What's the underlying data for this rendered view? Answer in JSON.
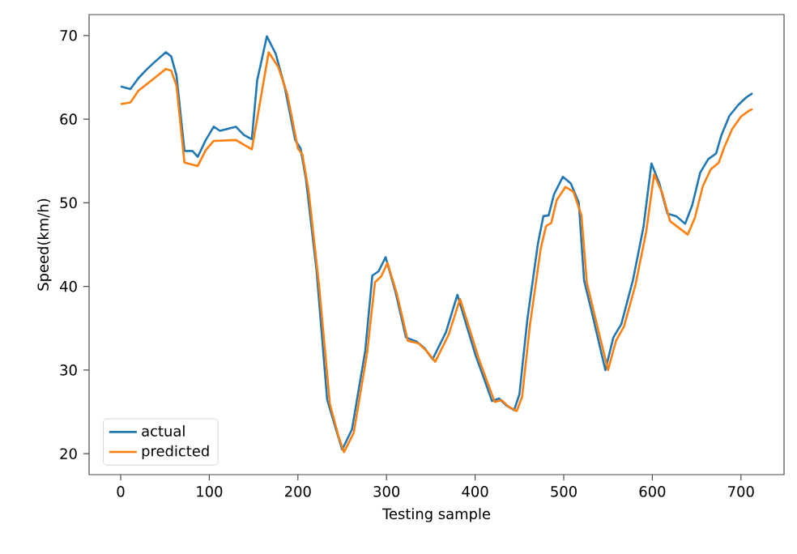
{
  "chart_data": {
    "type": "line",
    "xlabel": "Testing sample",
    "ylabel": "Speed(km/h)",
    "xlim": [
      -35.65,
      748.65
    ],
    "ylim": [
      17.5,
      72.5
    ],
    "xticks": [
      0,
      100,
      200,
      300,
      400,
      500,
      600,
      700
    ],
    "yticks": [
      20,
      30,
      40,
      50,
      60,
      70
    ],
    "grid": false,
    "legend": "bottom left",
    "marker": "none",
    "line_style": "solid",
    "series": [
      {
        "name": "actual",
        "color": "#1f77b4",
        "x": [
          0,
          11,
          20,
          29,
          38,
          51,
          57,
          63,
          72,
          81,
          87,
          96,
          105,
          112,
          130,
          139,
          148,
          154,
          165,
          175,
          185,
          197,
          203,
          209,
          221,
          233,
          243,
          250,
          261,
          276,
          284,
          291,
          299,
          310,
          322,
          334,
          343,
          352,
          367,
          380,
          389,
          401,
          410,
          419,
          427,
          435,
          444,
          450,
          459,
          471,
          477,
          483,
          489,
          499,
          508,
          517,
          523,
          532,
          547,
          556,
          565,
          578,
          590,
          599,
          608,
          617,
          627,
          637,
          645,
          654,
          663,
          672,
          678,
          687,
          697,
          706,
          713
        ],
        "values": [
          63.9,
          63.6,
          64.9,
          65.9,
          66.8,
          68.0,
          67.5,
          65.2,
          56.2,
          56.2,
          55.5,
          57.5,
          59.1,
          58.6,
          59.1,
          58.1,
          57.6,
          64.6,
          69.9,
          67.8,
          63.9,
          57.5,
          56.5,
          52.9,
          42.0,
          26.5,
          22.9,
          20.5,
          22.9,
          32.3,
          41.3,
          41.8,
          43.5,
          39.4,
          33.9,
          33.4,
          32.6,
          31.3,
          34.5,
          39.0,
          35.8,
          31.6,
          29.0,
          26.3,
          26.6,
          25.8,
          25.2,
          27.1,
          36.1,
          45.2,
          48.4,
          48.5,
          51.0,
          53.1,
          52.3,
          50.0,
          40.7,
          36.8,
          30.0,
          33.9,
          35.5,
          40.7,
          47.1,
          54.7,
          52.3,
          48.7,
          48.4,
          47.5,
          49.7,
          53.6,
          55.2,
          55.9,
          58.1,
          60.4,
          61.7,
          62.6,
          63.1
        ]
      },
      {
        "name": "predicted",
        "color": "#ff7f0e",
        "x": [
          0,
          11,
          20,
          38,
          51,
          57,
          63,
          72,
          87,
          96,
          105,
          130,
          148,
          154,
          167,
          178,
          188,
          200,
          205,
          212,
          224,
          236,
          246,
          252,
          263,
          278,
          287,
          294,
          301,
          312,
          324,
          336,
          345,
          355,
          370,
          383,
          392,
          404,
          413,
          422,
          430,
          438,
          447,
          453,
          462,
          474,
          480,
          486,
          492,
          502,
          511,
          520,
          526,
          535,
          550,
          559,
          568,
          581,
          593,
          602,
          611,
          620,
          630,
          640,
          648,
          657,
          666,
          675,
          681,
          690,
          700,
          709,
          713
        ],
        "values": [
          61.8,
          62.0,
          63.4,
          64.9,
          66.0,
          65.8,
          64.0,
          54.8,
          54.4,
          56.3,
          57.4,
          57.5,
          56.4,
          60.0,
          68.0,
          66.2,
          63.0,
          56.5,
          55.8,
          51.5,
          40.0,
          26.0,
          22.0,
          20.2,
          22.5,
          32.0,
          40.5,
          41.2,
          42.8,
          39.0,
          33.5,
          33.2,
          32.3,
          31.0,
          34.2,
          38.5,
          35.5,
          31.4,
          28.8,
          26.2,
          26.4,
          25.6,
          25.1,
          26.8,
          35.5,
          44.5,
          47.2,
          47.6,
          50.3,
          51.9,
          51.3,
          48.5,
          40.5,
          36.5,
          30.0,
          33.5,
          35.2,
          40.2,
          46.5,
          53.4,
          51.2,
          47.8,
          47.0,
          46.2,
          48.2,
          52.0,
          54.0,
          54.8,
          56.6,
          58.8,
          60.3,
          61.0,
          61.2
        ]
      }
    ]
  }
}
